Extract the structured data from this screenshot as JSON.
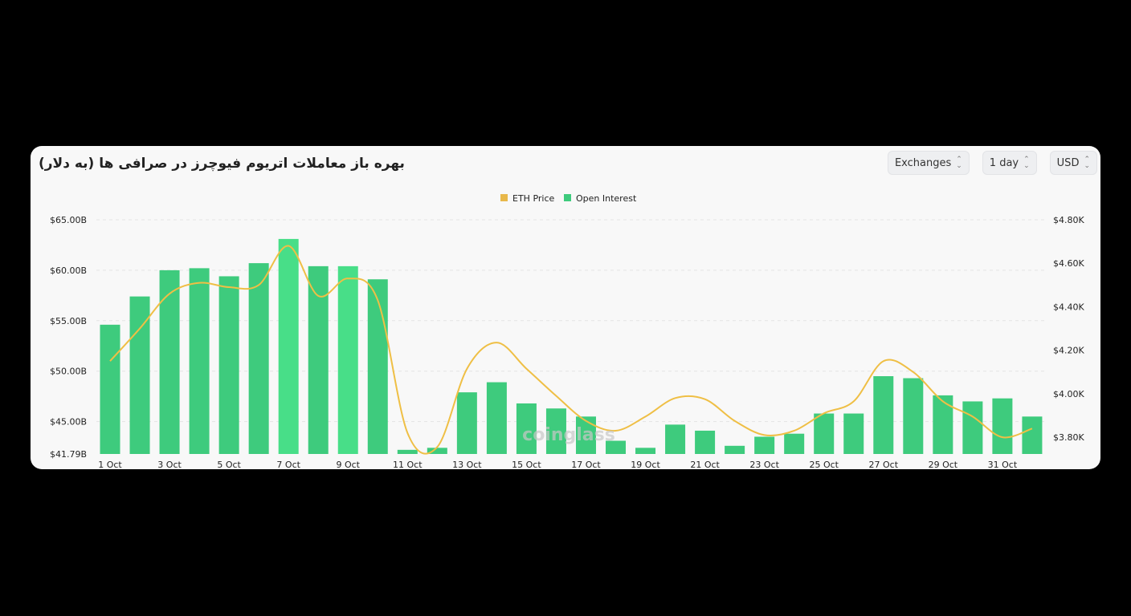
{
  "title": "بهره باز معاملات اتریوم فیوچرز در صرافی ها (به دلار)",
  "controls": [
    {
      "label": "Exchanges",
      "icon": "chevron-up-down-icon"
    },
    {
      "label": "1 day",
      "icon": "chevron-up-down-icon"
    },
    {
      "label": "USD",
      "icon": "chevron-up-down-icon"
    }
  ],
  "watermark": "coinglass",
  "colors": {
    "bars": "#3ecb7d",
    "line": "#f0c04a"
  },
  "chart_data": {
    "type": "bar+line",
    "legend": [
      "ETH Price",
      "Open Interest"
    ],
    "legend_position": "top-center",
    "categories": [
      "1 Oct",
      "2 Oct",
      "3 Oct",
      "4 Oct",
      "5 Oct",
      "6 Oct",
      "7 Oct",
      "8 Oct",
      "9 Oct",
      "10 Oct",
      "11 Oct",
      "12 Oct",
      "13 Oct",
      "14 Oct",
      "15 Oct",
      "16 Oct",
      "17 Oct",
      "18 Oct",
      "19 Oct",
      "20 Oct",
      "21 Oct",
      "22 Oct",
      "23 Oct",
      "24 Oct",
      "25 Oct",
      "26 Oct",
      "27 Oct",
      "28 Oct",
      "29 Oct",
      "30 Oct",
      "31 Oct",
      "1 Nov"
    ],
    "x_tick_labels": [
      "1 Oct",
      "3 Oct",
      "5 Oct",
      "7 Oct",
      "9 Oct",
      "11 Oct",
      "13 Oct",
      "15 Oct",
      "17 Oct",
      "19 Oct",
      "21 Oct",
      "23 Oct",
      "25 Oct",
      "27 Oct",
      "29 Oct",
      "31 Oct"
    ],
    "series": [
      {
        "name": "Open Interest",
        "type": "bar",
        "axis": "left",
        "unit": "B USD",
        "values": [
          54.6,
          57.4,
          60.0,
          60.2,
          59.4,
          60.7,
          63.1,
          60.4,
          60.4,
          59.1,
          42.2,
          42.4,
          47.9,
          48.9,
          46.8,
          46.3,
          45.5,
          43.1,
          42.4,
          44.7,
          44.1,
          42.6,
          43.5,
          43.8,
          45.8,
          45.8,
          49.5,
          49.3,
          47.6,
          47.0,
          47.3,
          45.5
        ]
      },
      {
        "name": "ETH Price",
        "type": "line",
        "axis": "right",
        "unit": "USD",
        "values": [
          4150,
          4300,
          4460,
          4510,
          4490,
          4500,
          4680,
          4450,
          4530,
          4430,
          3820,
          3755,
          4115,
          4235,
          4115,
          3990,
          3875,
          3830,
          3895,
          3980,
          3975,
          3875,
          3810,
          3830,
          3910,
          3965,
          4150,
          4100,
          3965,
          3895,
          3800,
          3840
        ]
      }
    ],
    "left_axis": {
      "ticks": [
        "$65.00B",
        "$60.00B",
        "$55.00B",
        "$50.00B",
        "$45.00B",
        "$41.79B"
      ],
      "range": [
        41.79,
        65
      ]
    },
    "right_axis": {
      "ticks": [
        "$4.80K",
        "$4.60K",
        "$4.40K",
        "$4.20K",
        "$4.00K",
        "$3.80K"
      ],
      "range": [
        3723,
        4800
      ]
    },
    "grid": true
  }
}
